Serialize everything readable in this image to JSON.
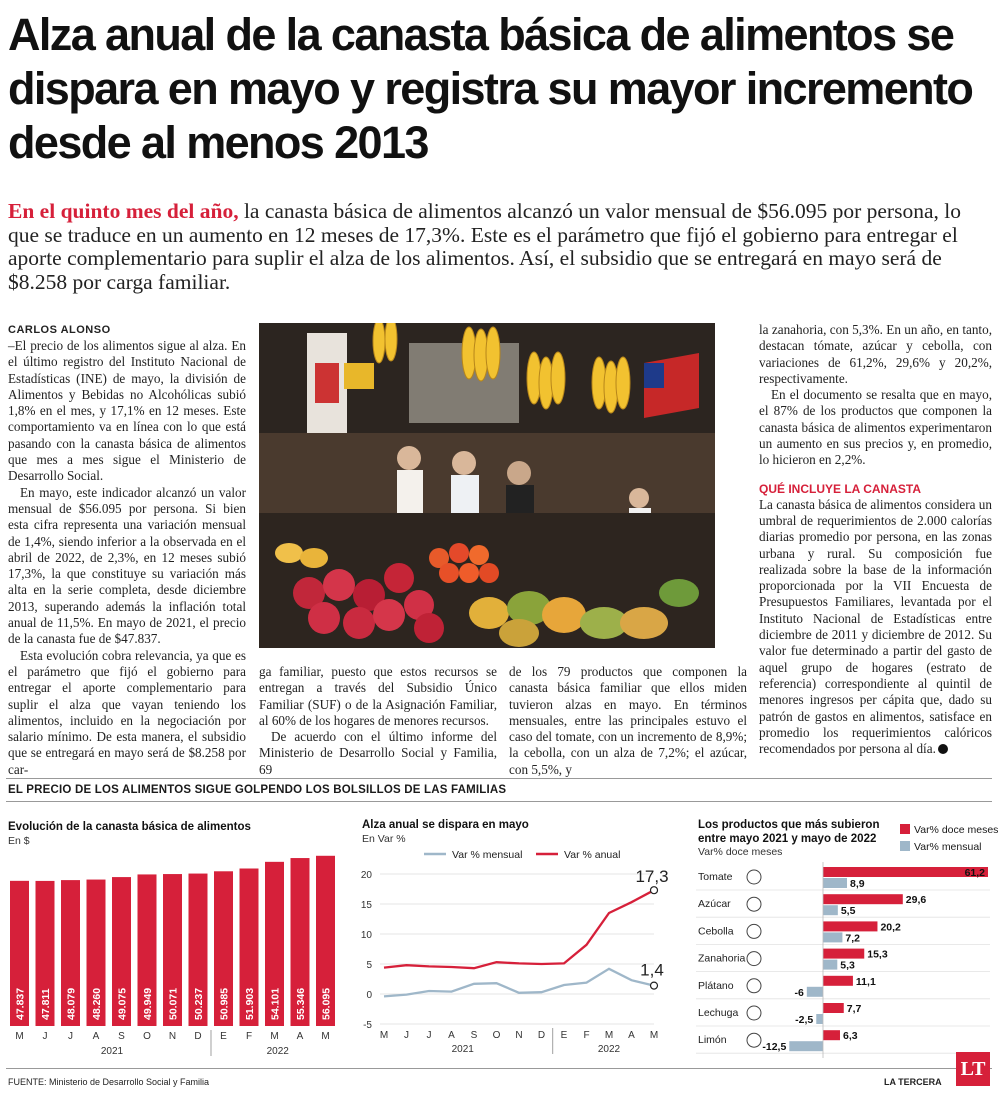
{
  "article": {
    "headline": "Alza anual de la canasta básica de alimentos se dispara en mayo y registra su mayor incremento desde al menos 2013",
    "lede_kicker": "En el quinto mes del año,",
    "lede_text": " la canasta básica de alimentos alcanzó un valor mensual de $56.095 por persona, lo que se traduce en un aumento en 12 meses de 17,3%. Este es el parámetro que fijó el gobierno para entregar el aporte complementario para suplir el alza de los alimentos. Así, el subsidio que se entregará en mayo será de $8.258 por carga familiar.",
    "byline": "CARLOS ALONSO",
    "col1_p1": "–El precio de los alimentos sigue al alza. En el último registro del Instituto Nacional de Estadísticas (INE) de mayo, la división de Alimentos y Bebidas no Alcohólicas subió 1,8% en el mes, y 17,1% en 12 meses. Este comportamiento va en línea con lo que está pasando con la canasta básica de alimentos que mes a mes sigue el Ministerio de Desarrollo Social.",
    "col1_p2": "En mayo, este indicador alcanzó un valor mensual de $56.095 por persona. Si bien esta cifra representa una variación mensual de 1,4%, siendo inferior a la observada en el abril de 2022, de 2,3%, en 12 meses subió 17,3%, la que constituye su variación más alta en la serie completa, desde diciembre 2013, superando además la inflación total anual de 11,5%. En mayo de 2021, el precio de la canasta fue de $47.837.",
    "col1_p3": "Esta evolución cobra relevancia, ya que es el parámetro que fijó el gobierno para entregar el aporte complementario para suplir el alza que vayan teniendo los alimentos, incluido en la negociación por salario mínimo. De esta manera, el subsidio que se entregará en mayo será de $8.258 por car-",
    "col2_p1": "ga familiar, puesto que estos recursos se entregan a través del Subsidio Único Familiar (SUF) o de la Asignación Familiar, al 60% de los hogares de menores recursos.",
    "col2_p2": "De acuerdo con el último informe del Ministerio de Desarrollo Social y Familia, 69",
    "col3_p1": "de los 79 productos que componen la canasta básica familiar que ellos miden tuvieron alzas en mayo. En términos mensuales, entre las principales estuvo el caso del tomate, con un incremento de 8,9%; la cebolla, con un alza de 7,2%; el azúcar, con 5,5%, y",
    "col4_p1": "la zanahoria, con 5,3%. En un año, en tanto, destacan tómate, azúcar y cebolla, con variaciones de 61,2%, 29,6% y 20,2%, respectivamente.",
    "col4_p2": "En el documento se resalta que en mayo, el 87% de los productos que componen la canasta básica de alimentos experimentaron un aumento en sus precios y, en promedio, lo hicieron en 2,2%.",
    "subhead": "QUÉ INCLUYE LA CANASTA",
    "col4_p3": "La canasta básica de alimentos considera un umbral de requerimientos de 2.000 calorías diarias promedio por persona, en las zonas urbana y rural. Su composición fue realizada sobre la base de la información proporcionada por la VII Encuesta de Presupuestos Familiares, levantada por el Instituto Nacional de Estadísticas entre diciembre de 2011 y diciembre de 2012. Su valor fue determinado a partir del gasto de aquel grupo de hogares (estrato de referencia) correspondiente al quintil de menores ingresos per cápita que, dado su patrón de gastos en alimentos, satisface en promedio los requerimientos calóricos recomendados por persona al día."
  },
  "infographic": {
    "band_title": "EL PRECIO DE LOS ALIMENTOS SIGUE GOLPENDO LOS BOLSILLOS DE LAS FAMILIAS",
    "source": "FUENTE: Ministerio de Desarrollo Social y Familia",
    "publisher": "LA TERCERA",
    "logo": "LT"
  },
  "colors": {
    "accent": "#d6203a",
    "secondary": "#9fb7c9"
  },
  "chart_data": [
    {
      "type": "bar",
      "title": "Evolución de la canasta básica de alimentos",
      "unit_label": "En $",
      "categories": [
        "M",
        "J",
        "J",
        "A",
        "S",
        "O",
        "N",
        "D",
        "E",
        "F",
        "M",
        "A",
        "M"
      ],
      "year_labels": [
        "2021",
        "2022"
      ],
      "values": [
        47837,
        47811,
        48079,
        48260,
        49075,
        49949,
        50071,
        50237,
        50985,
        51903,
        54101,
        55346,
        56095
      ],
      "value_labels": [
        "47.837",
        "47.811",
        "48.079",
        "48.260",
        "49.075",
        "49.949",
        "50.071",
        "50.237",
        "50.985",
        "51.903",
        "54.101",
        "55.346",
        "56.095"
      ],
      "ylim": [
        0,
        58000
      ]
    },
    {
      "type": "line",
      "title": "Alza anual se dispara en mayo",
      "unit_label": "En Var %",
      "categories": [
        "M",
        "J",
        "J",
        "A",
        "S",
        "O",
        "N",
        "D",
        "E",
        "F",
        "M",
        "A",
        "M"
      ],
      "year_labels": [
        "2021",
        "2022"
      ],
      "yticks": [
        "20",
        "15",
        "10",
        "5",
        "0",
        "-5"
      ],
      "ylim": [
        -5,
        20
      ],
      "series": [
        {
          "name": "Var % mensual",
          "color": "#9fb7c9",
          "values": [
            -0.4,
            -0.1,
            0.5,
            0.4,
            1.7,
            1.8,
            0.2,
            0.3,
            1.5,
            1.9,
            4.2,
            2.3,
            1.4
          ]
        },
        {
          "name": "Var % anual",
          "color": "#d6203a",
          "values": [
            4.4,
            4.8,
            4.6,
            4.5,
            4.3,
            5.3,
            5.1,
            5.0,
            5.1,
            8.2,
            13.5,
            15.3,
            17.3
          ]
        }
      ],
      "end_labels": [
        "17,3",
        "1,4"
      ]
    },
    {
      "type": "bar",
      "title": "Los productos que más subieron entre mayo 2021 y mayo de 2022",
      "unit_label": "Var% doce meses",
      "categories": [
        "Tomate",
        "Azúcar",
        "Cebolla",
        "Zanahoria",
        "Plátano",
        "Lechuga",
        "Limón"
      ],
      "icons": [
        "tomato-icon",
        "sugar-bag-icon",
        "onion-icon",
        "carrot-icon",
        "banana-icon",
        "lettuce-icon",
        "lemon-icon"
      ],
      "series": [
        {
          "name": "Var% doce meses",
          "color": "#d6203a",
          "values": [
            61.2,
            29.6,
            20.2,
            15.3,
            11.1,
            7.7,
            6.3
          ],
          "labels": [
            "61,2",
            "29,6",
            "20,2",
            "15,3",
            "11,1",
            "7,7",
            "6,3"
          ]
        },
        {
          "name": "Var% mensual",
          "color": "#9fb7c9",
          "values": [
            8.9,
            5.5,
            7.2,
            5.3,
            -6,
            -2.5,
            -12.5
          ],
          "labels": [
            "8,9",
            "5,5",
            "7,2",
            "5,3",
            "-6",
            "-2,5",
            "-12,5"
          ]
        }
      ]
    }
  ]
}
